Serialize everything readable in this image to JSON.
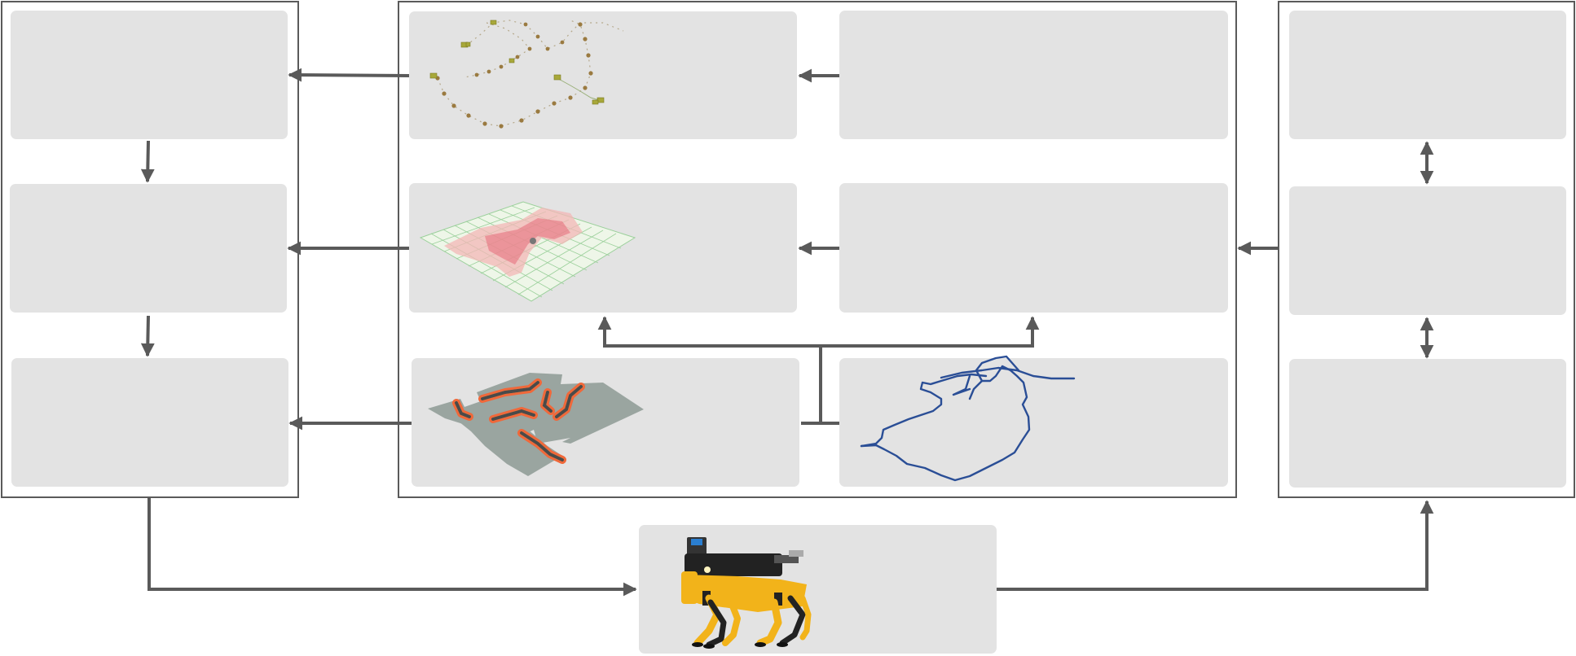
{
  "diagram": {
    "colors": {
      "frame": "#5a5a5a",
      "box_fill": "#e3e3e3",
      "arrow": "#5a5a5a",
      "node": "#9a9a2a",
      "grid_green": "#7ac47a",
      "grid_red": "#e8707a",
      "map_grey": "#9aa5a0",
      "map_orange": "#f0683a",
      "map_yellow": "#f8c040",
      "trajectory_blue": "#2a4e96",
      "robot_yellow": "#f2b31a",
      "robot_black": "#222222"
    },
    "icons": {
      "graph": "pose-graph-icon",
      "grid": "traversability-grid-icon",
      "map": "costmap-icon",
      "trajectory": "trajectory-path-icon",
      "robot": "quadruped-robot-icon"
    }
  }
}
